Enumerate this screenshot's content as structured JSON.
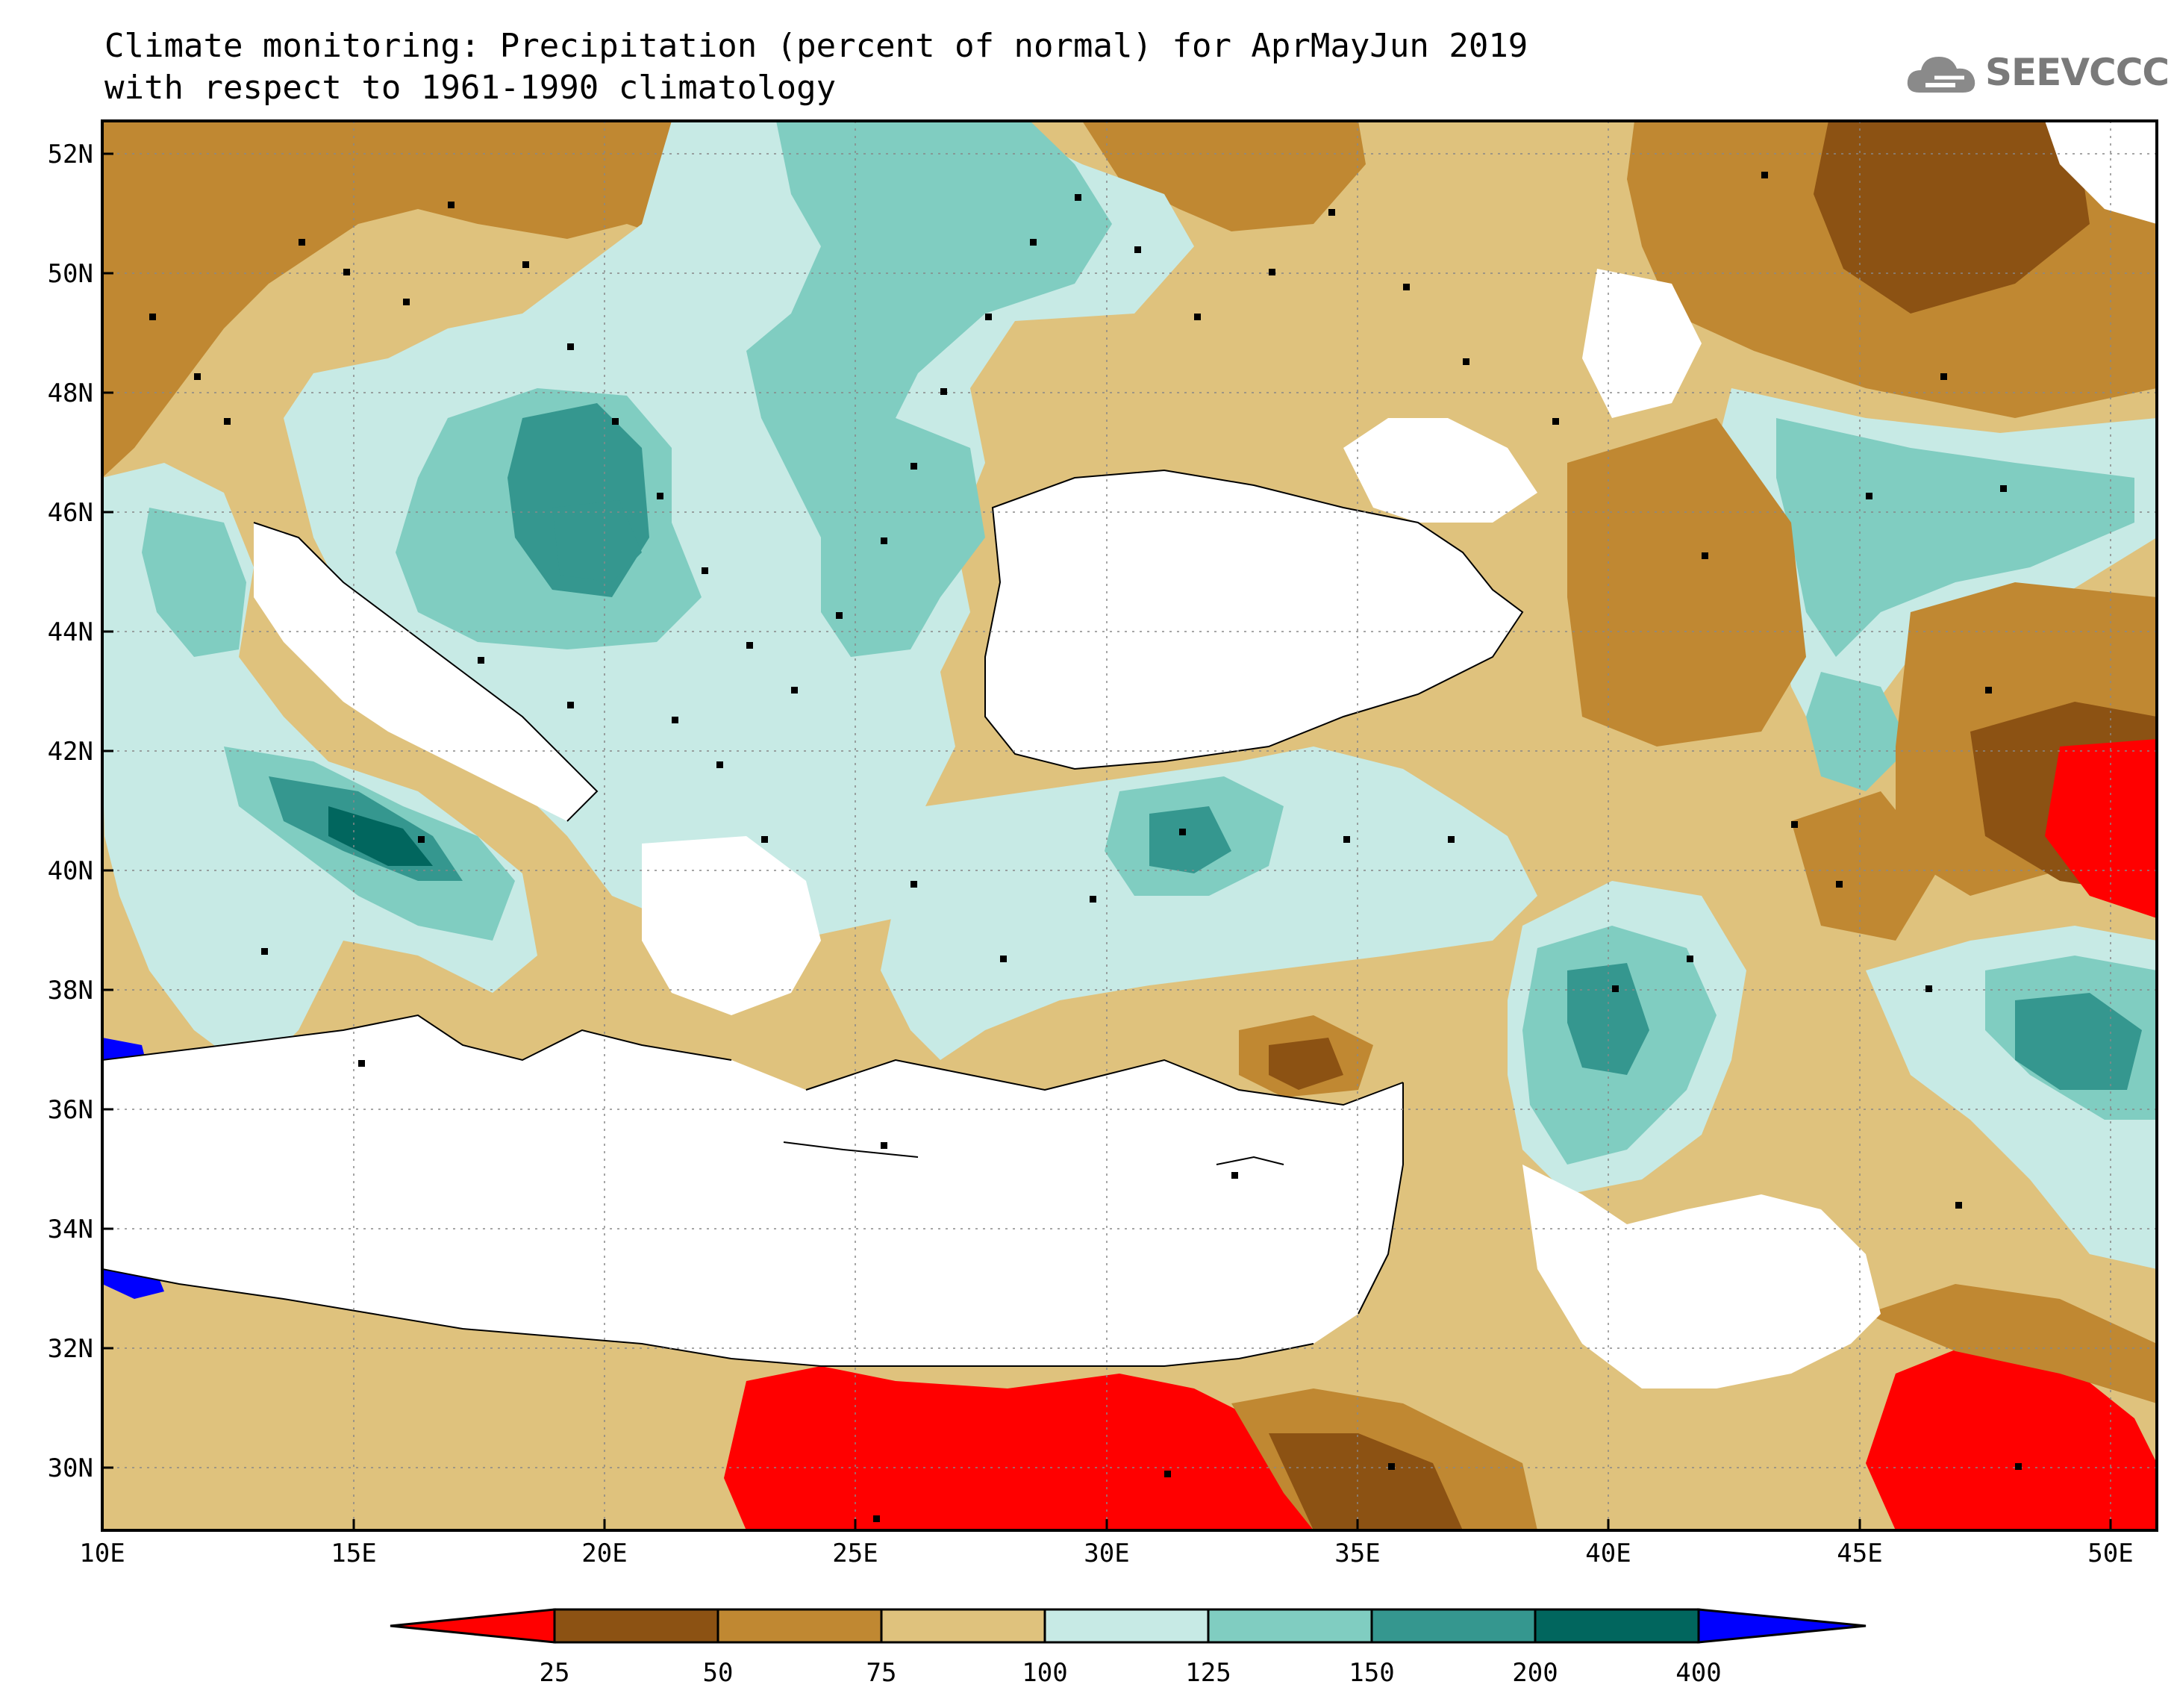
{
  "header": {
    "title_line1": "Climate monitoring: Precipitation (percent of normal) for AprMayJun 2019",
    "title_line2": "with respect to 1961-1990 climatology",
    "logo_text": "SEEVCCC",
    "logo_icon": "cloud-icon"
  },
  "map": {
    "lat_labels": [
      "52N",
      "50N",
      "48N",
      "46N",
      "44N",
      "42N",
      "40N",
      "38N",
      "36N",
      "34N",
      "32N",
      "30N"
    ],
    "lon_labels": [
      "10E",
      "15E",
      "20E",
      "25E",
      "30E",
      "35E",
      "40E",
      "45E",
      "50E"
    ],
    "lon_range": [
      10,
      51
    ],
    "lat_range": [
      29,
      52.5
    ],
    "grid_style": "dotted",
    "station_marker": "black-square"
  },
  "legend": {
    "labels": [
      "25",
      "50",
      "75",
      "100",
      "125",
      "150",
      "200",
      "400"
    ],
    "colors": [
      "#ff0000",
      "#8c5213",
      "#c08832",
      "#dfc27d",
      "#c7eae5",
      "#80cdc1",
      "#35978f",
      "#01665e",
      "#0000ff"
    ]
  }
}
